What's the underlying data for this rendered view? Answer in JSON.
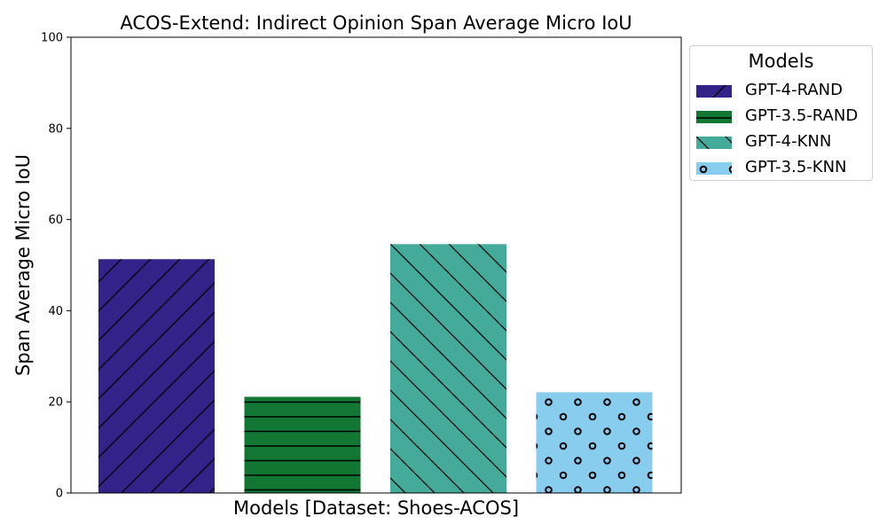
{
  "chart_data": {
    "type": "bar",
    "title": "ACOS-Extend: Indirect Opinion Span Average Micro IoU",
    "xlabel": "Models [Dataset: Shoes-ACOS]",
    "ylabel": "Span Average Micro IoU",
    "ylim": [
      0,
      100
    ],
    "yticks": [
      "0",
      "20",
      "40",
      "60",
      "80",
      "100"
    ],
    "grid": false,
    "legend": {
      "title": "Models",
      "placement": "outside-right-top"
    },
    "series": [
      {
        "name": "GPT-4-RAND",
        "value": 51.3,
        "color": "#332288",
        "pattern": "diagonal-up"
      },
      {
        "name": "GPT-3.5-RAND",
        "value": 21.1,
        "color": "#117733",
        "pattern": "horizontal"
      },
      {
        "name": "GPT-4-KNN",
        "value": 54.6,
        "color": "#44AA99",
        "pattern": "diagonal-down"
      },
      {
        "name": "GPT-3.5-KNN",
        "value": 22.1,
        "color": "#88CCEE",
        "pattern": "circles"
      }
    ]
  }
}
